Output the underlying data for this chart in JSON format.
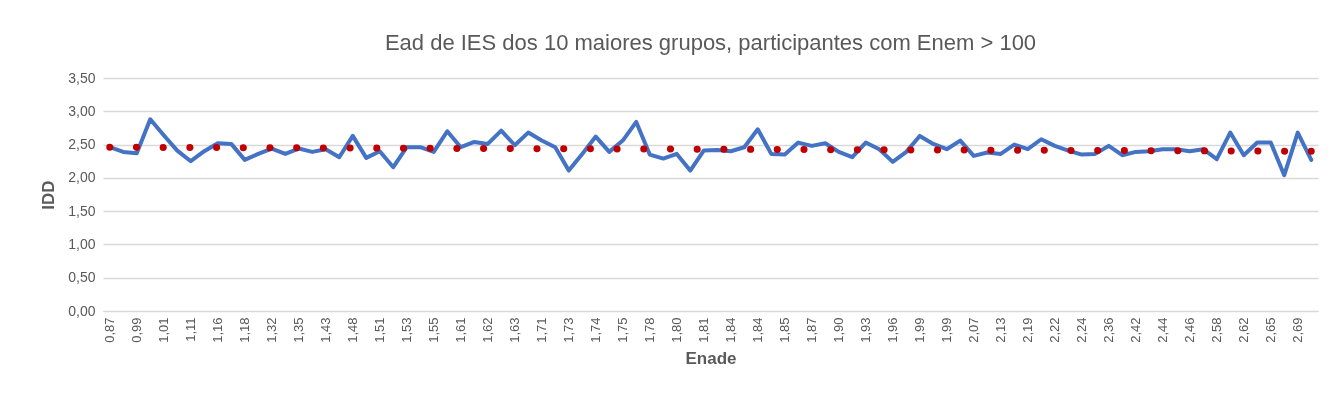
{
  "chart_data": {
    "type": "line",
    "title": "Ead de IES dos 10 maiores grupos, participantes com Enem > 100",
    "xlabel": "Enade",
    "ylabel": "IDD",
    "categories": [
      "0,87",
      null,
      "0,99",
      null,
      "1,01",
      null,
      "1,11",
      null,
      "1,16",
      null,
      "1,18",
      null,
      "1,32",
      null,
      "1,35",
      null,
      "1,43",
      null,
      "1,48",
      null,
      "1,51",
      null,
      "1,53",
      null,
      "1,55",
      null,
      "1,61",
      null,
      "1,62",
      null,
      "1,63",
      null,
      "1,71",
      null,
      "1,73",
      null,
      "1,74",
      null,
      "1,75",
      null,
      "1,78",
      null,
      "1,80",
      null,
      "1,81",
      null,
      "1,84",
      null,
      "1,84",
      null,
      "1,85",
      null,
      "1,87",
      null,
      "1,90",
      null,
      "1,93",
      null,
      "1,96",
      null,
      "1,99",
      null,
      "1,99",
      null,
      "2,07",
      null,
      "2,13",
      null,
      "2,19",
      null,
      "2,22",
      null,
      "2,24",
      null,
      "2,36",
      null,
      "2,42",
      null,
      "2,44",
      null,
      "2,46",
      null,
      "2,58",
      null,
      "2,62",
      null,
      "2,65",
      null,
      "2,69",
      null
    ],
    "series": [
      {
        "color": "#4472c4",
        "values": [
          2.46,
          2.39,
          2.37,
          2.88,
          2.64,
          2.41,
          2.25,
          2.4,
          2.52,
          2.51,
          2.27,
          2.36,
          2.44,
          2.36,
          2.44,
          2.39,
          2.43,
          2.31,
          2.63,
          2.3,
          2.4,
          2.16,
          2.46,
          2.46,
          2.39,
          2.7,
          2.46,
          2.54,
          2.51,
          2.71,
          2.49,
          2.68,
          2.56,
          2.46,
          2.11,
          2.36,
          2.62,
          2.39,
          2.56,
          2.84,
          2.35,
          2.29,
          2.36,
          2.11,
          2.41,
          2.42,
          2.4,
          2.46,
          2.73,
          2.36,
          2.35,
          2.53,
          2.48,
          2.52,
          2.39,
          2.31,
          2.53,
          2.43,
          2.24,
          2.39,
          2.63,
          2.51,
          2.43,
          2.56,
          2.33,
          2.38,
          2.36,
          2.5,
          2.43,
          2.58,
          2.48,
          2.41,
          2.35,
          2.36,
          2.48,
          2.34,
          2.39,
          2.4,
          2.43,
          2.43,
          2.4,
          2.43,
          2.28,
          2.68,
          2.34,
          2.53,
          2.53,
          2.04,
          2.68,
          2.27
        ]
      },
      {
        "type": "line",
        "color": "#c00000",
        "line_style": "dotted",
        "values": [
          2.46,
          null,
          null,
          null,
          null,
          null,
          null,
          null,
          null,
          null,
          null,
          null,
          null,
          null,
          null,
          null,
          null,
          null,
          null,
          null,
          null,
          null,
          null,
          null,
          null,
          null,
          null,
          null,
          null,
          null,
          null,
          null,
          null,
          null,
          null,
          null,
          null,
          null,
          null,
          null,
          null,
          null,
          null,
          null,
          null,
          null,
          null,
          null,
          null,
          null,
          null,
          null,
          null,
          null,
          null,
          null,
          null,
          null,
          null,
          null,
          null,
          null,
          null,
          null,
          null,
          null,
          null,
          null,
          null,
          null,
          null,
          null,
          null,
          null,
          null,
          null,
          null,
          null,
          null,
          null,
          null,
          null,
          null,
          null,
          null,
          null,
          null,
          null,
          null,
          2.4
        ]
      }
    ],
    "ylim": [
      0,
      3.5
    ],
    "yticks": [
      {
        "value": 0,
        "label": "0,00"
      },
      {
        "value": 0.5,
        "label": "0,50"
      },
      {
        "value": 1,
        "label": "1,00"
      },
      {
        "value": 1.5,
        "label": "1,50"
      },
      {
        "value": 2,
        "label": "2,00"
      },
      {
        "value": 2.5,
        "label": "2,50"
      },
      {
        "value": 3,
        "label": "3,00"
      },
      {
        "value": 3.5,
        "label": "3,50"
      }
    ],
    "grid": "y",
    "marker": "none"
  }
}
